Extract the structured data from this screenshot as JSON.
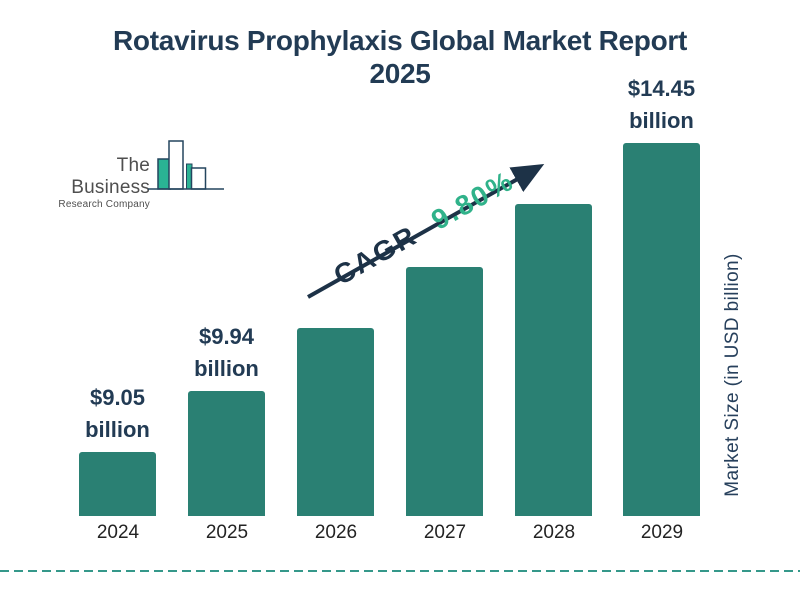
{
  "title": {
    "line1": "Rotavirus Prophylaxis Global Market Report",
    "line2": "2025"
  },
  "logo": {
    "name": "The Business",
    "subname": "Research Company"
  },
  "annotation": {
    "cagr_label": "CAGR",
    "cagr_value": "9.80%"
  },
  "chart_data": {
    "type": "bar",
    "title": "Rotavirus Prophylaxis Global Market Report 2025",
    "categories": [
      "2024",
      "2025",
      "2026",
      "2027",
      "2028",
      "2029"
    ],
    "values": [
      9.05,
      9.94,
      10.91,
      11.98,
      13.16,
      14.45
    ],
    "unit": "USD billion",
    "value_labels": [
      {
        "category": "2024",
        "line1": "$9.05",
        "line2": "billion"
      },
      {
        "category": "2025",
        "line1": "$9.94",
        "line2": "billion"
      },
      {
        "category": "2029",
        "line1": "$14.45",
        "line2": "billion"
      }
    ],
    "cagr": "9.80%",
    "xlabel": "",
    "ylabel": "Market Size (in USD billion)",
    "legend": false,
    "grid": false
  },
  "colors": {
    "bar": "#2a8073",
    "navy": "#223b54",
    "arrow": "#1d3247",
    "green": "#30b28a",
    "year_text": "#232323",
    "logo_text": "#4f4f4f",
    "logo_teal": "#2ab394",
    "logo_outline": "#24455e",
    "dashed_line": "#35988a"
  }
}
